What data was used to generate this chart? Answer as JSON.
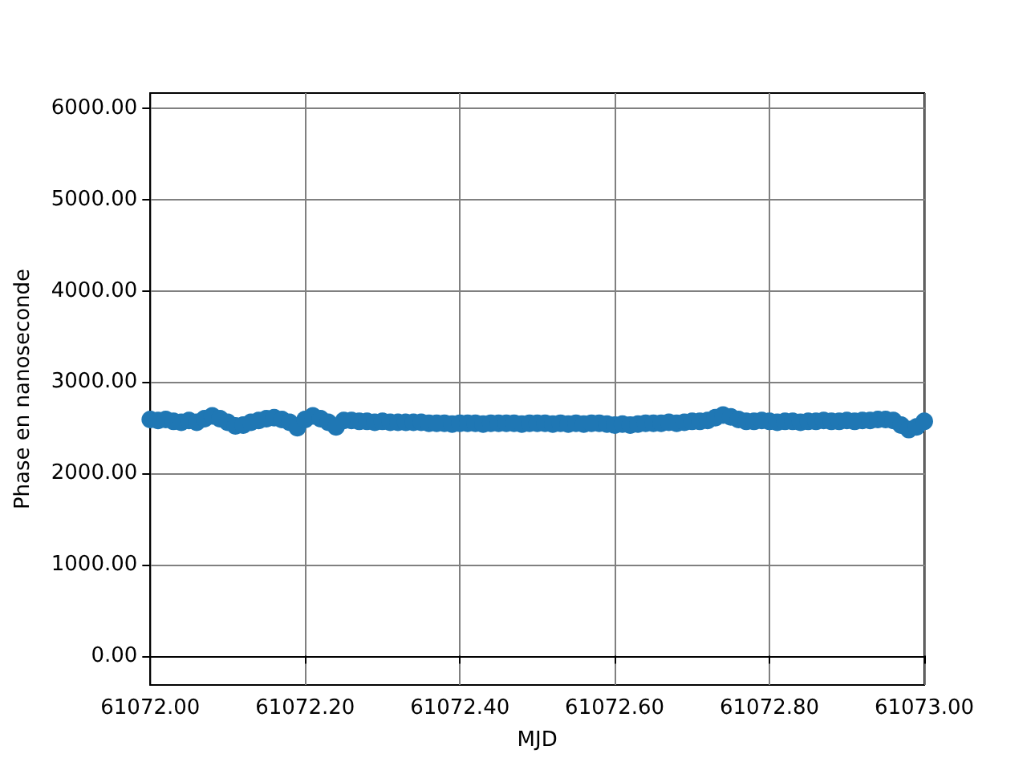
{
  "chart_data": {
    "type": "scatter",
    "xlabel": "MJD",
    "ylabel": "Phase en nanoseconde",
    "x": [
      61072.0,
      61072.01,
      61072.02,
      61072.03,
      61072.04,
      61072.05,
      61072.06,
      61072.07,
      61072.08,
      61072.09,
      61072.1,
      61072.11,
      61072.12,
      61072.13,
      61072.14,
      61072.15,
      61072.16,
      61072.17,
      61072.18,
      61072.19,
      61072.2,
      61072.21,
      61072.22,
      61072.23,
      61072.24,
      61072.25,
      61072.26,
      61072.27,
      61072.28,
      61072.29,
      61072.3,
      61072.31,
      61072.32,
      61072.33,
      61072.34,
      61072.35,
      61072.36,
      61072.37,
      61072.38,
      61072.39,
      61072.4,
      61072.41,
      61072.42,
      61072.43,
      61072.44,
      61072.45,
      61072.46,
      61072.47,
      61072.48,
      61072.49,
      61072.5,
      61072.51,
      61072.52,
      61072.53,
      61072.54,
      61072.55,
      61072.56,
      61072.57,
      61072.58,
      61072.59,
      61072.6,
      61072.61,
      61072.62,
      61072.63,
      61072.64,
      61072.65,
      61072.66,
      61072.67,
      61072.68,
      61072.69,
      61072.7,
      61072.71,
      61072.72,
      61072.73,
      61072.74,
      61072.75,
      61072.76,
      61072.77,
      61072.78,
      61072.79,
      61072.8,
      61072.81,
      61072.82,
      61072.83,
      61072.84,
      61072.85,
      61072.86,
      61072.87,
      61072.88,
      61072.89,
      61072.9,
      61072.91,
      61072.92,
      61072.93,
      61072.94,
      61072.95,
      61072.96,
      61072.97,
      61072.98,
      61072.99,
      61073.0
    ],
    "series": [
      {
        "color": "#1f77b4",
        "values": [
          2590,
          2580,
          2590,
          2570,
          2560,
          2580,
          2560,
          2600,
          2630,
          2600,
          2560,
          2520,
          2530,
          2560,
          2580,
          2600,
          2610,
          2590,
          2560,
          2500,
          2590,
          2630,
          2600,
          2560,
          2510,
          2580,
          2580,
          2570,
          2570,
          2560,
          2570,
          2560,
          2560,
          2560,
          2560,
          2560,
          2550,
          2550,
          2550,
          2540,
          2550,
          2550,
          2550,
          2540,
          2550,
          2550,
          2550,
          2550,
          2540,
          2550,
          2550,
          2550,
          2540,
          2550,
          2540,
          2550,
          2540,
          2550,
          2550,
          2540,
          2530,
          2540,
          2530,
          2540,
          2550,
          2550,
          2550,
          2560,
          2550,
          2560,
          2570,
          2570,
          2580,
          2610,
          2640,
          2620,
          2590,
          2570,
          2570,
          2580,
          2570,
          2560,
          2570,
          2570,
          2560,
          2570,
          2570,
          2580,
          2570,
          2570,
          2580,
          2570,
          2580,
          2580,
          2590,
          2590,
          2580,
          2530,
          2480,
          2510,
          2570
        ]
      }
    ],
    "xlim": [
      61072.0,
      61073.0
    ],
    "xticks": [
      {
        "value": 61072.0,
        "label": "61072.00"
      },
      {
        "value": 61072.2,
        "label": "61072.20"
      },
      {
        "value": 61072.4,
        "label": "61072.40"
      },
      {
        "value": 61072.6,
        "label": "61072.60"
      },
      {
        "value": 61072.8,
        "label": "61072.80"
      },
      {
        "value": 61073.0,
        "label": "61073.00"
      }
    ],
    "ylim": [
      -320,
      6170
    ],
    "yticks": [
      {
        "value": 0,
        "label": "0.00"
      },
      {
        "value": 1000,
        "label": "1000.00"
      },
      {
        "value": 2000,
        "label": "2000.00"
      },
      {
        "value": 3000,
        "label": "3000.00"
      },
      {
        "value": 4000,
        "label": "4000.00"
      },
      {
        "value": 5000,
        "label": "5000.00"
      },
      {
        "value": 6000,
        "label": "6000.00"
      }
    ],
    "grid": true,
    "marker": "circle"
  }
}
